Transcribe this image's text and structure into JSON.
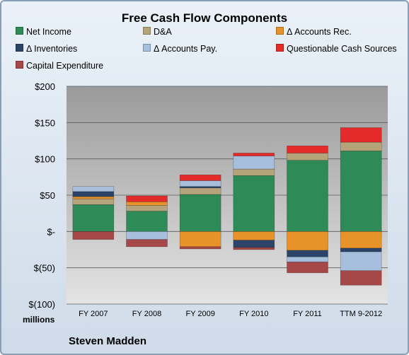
{
  "chart_data": {
    "type": "bar",
    "stacked": true,
    "title": "Free Cash Flow Components",
    "categories": [
      "FY 2007",
      "FY 2008",
      "FY 2009",
      "FY 2010",
      "FY 2011",
      "TTM 9-2012"
    ],
    "ylim": [
      -100,
      200
    ],
    "yticks": [
      200,
      150,
      100,
      50,
      0,
      -50,
      -100
    ],
    "ytick_labels": [
      "$200",
      "$150",
      "$100",
      "$50",
      "$-",
      "$(50)",
      "$(100)"
    ],
    "units_label": "millions",
    "legend_position": "top",
    "series": [
      {
        "name": "Net Income",
        "color": "#2e8b57",
        "values": [
          37,
          28,
          51,
          77,
          98,
          111
        ]
      },
      {
        "name": "D&A",
        "color": "#b5a37a",
        "values": [
          8,
          8,
          9,
          9,
          10,
          12
        ]
      },
      {
        "name": "Δ Accounts Rec.",
        "color": "#e8922a",
        "values": [
          3,
          5,
          -21,
          -12,
          -26,
          -23
        ]
      },
      {
        "name": "Δ Inventories",
        "color": "#2b4468",
        "values": [
          7,
          0,
          2,
          -10,
          -9,
          -5
        ]
      },
      {
        "name": "Δ Accounts Pay.",
        "color": "#a7bfdc",
        "values": [
          7,
          -11,
          8,
          18,
          -7,
          -26
        ]
      },
      {
        "name": "Questionable Cash Sources",
        "color": "#e52a2a",
        "values": [
          0,
          8,
          8,
          4,
          10,
          20
        ]
      },
      {
        "name": "Capital Expenditure",
        "color": "#a64848",
        "values": [
          -11,
          -10,
          -3,
          -3,
          -15,
          -20
        ]
      }
    ]
  },
  "company": "Steven Madden"
}
